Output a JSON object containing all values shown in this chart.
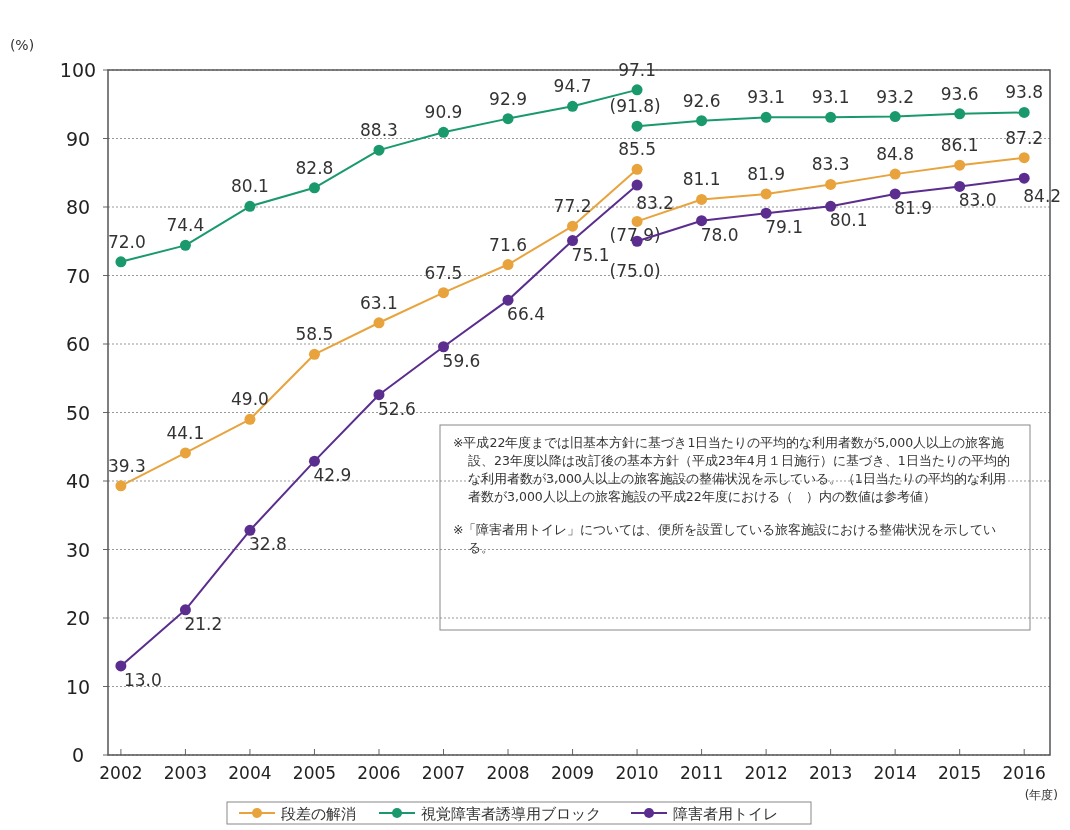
{
  "chart_data": {
    "type": "line",
    "ylabel": "(%)",
    "xlabel": "(年度)",
    "xlim": [
      2001.8,
      2016.4
    ],
    "xticks": [
      2002,
      2003,
      2004,
      2005,
      2006,
      2007,
      2008,
      2009,
      2010,
      2011,
      2012,
      2013,
      2014,
      2015,
      2016
    ],
    "ylim": [
      0,
      100
    ],
    "yticks": [
      0,
      10,
      20,
      30,
      40,
      50,
      60,
      70,
      80,
      90,
      100
    ],
    "grid": "y",
    "legend": "bottom",
    "marker": "circle",
    "line_style": "solid",
    "series": [
      {
        "name": "段差の解消",
        "color": "#e8a33d",
        "x": [
          2002,
          2003,
          2004,
          2005,
          2006,
          2007,
          2008,
          2009,
          2010
        ],
        "values": [
          39.3,
          44.1,
          49.0,
          58.5,
          63.1,
          67.5,
          71.6,
          77.2,
          85.5
        ],
        "value_labels": [
          "39.3",
          "44.1",
          "49.0",
          "58.5",
          "63.1",
          "67.5",
          "71.6",
          "77.2",
          "85.5"
        ]
      },
      {
        "name": "視覚障害者誘導用ブロック",
        "color": "#1a9a6c",
        "x": [
          2002,
          2003,
          2004,
          2005,
          2006,
          2007,
          2008,
          2009,
          2010
        ],
        "values": [
          72.0,
          74.4,
          80.1,
          82.8,
          88.3,
          90.9,
          92.9,
          94.7,
          97.1
        ],
        "value_labels": [
          "72.0",
          "74.4",
          "80.1",
          "82.8",
          "88.3",
          "90.9",
          "92.9",
          "94.7",
          "97.1"
        ]
      },
      {
        "name": "障害者用トイレ",
        "color": "#5b2d8e",
        "x": [
          2002,
          2003,
          2004,
          2005,
          2006,
          2007,
          2008,
          2009,
          2010
        ],
        "values": [
          13.0,
          21.2,
          32.8,
          42.9,
          52.6,
          59.6,
          66.4,
          75.1,
          83.2
        ],
        "value_labels": [
          "13.0",
          "21.2",
          "32.8",
          "42.9",
          "52.6",
          "59.6",
          "66.4",
          "75.1",
          "83.2"
        ]
      },
      {
        "color": "#e8a33d",
        "x": [
          2010,
          2011,
          2012,
          2013,
          2014,
          2015,
          2016
        ],
        "values": [
          77.9,
          81.1,
          81.9,
          83.3,
          84.8,
          86.1,
          87.2
        ],
        "value_labels": [
          "(77.9)",
          "81.1",
          "81.9",
          "83.3",
          "84.8",
          "86.1",
          "87.2"
        ]
      },
      {
        "color": "#1a9a6c",
        "x": [
          2010,
          2011,
          2012,
          2013,
          2014,
          2015,
          2016
        ],
        "values": [
          91.8,
          92.6,
          93.1,
          93.1,
          93.2,
          93.6,
          93.8
        ],
        "value_labels": [
          "(91.8)",
          "92.6",
          "93.1",
          "93.1",
          "93.2",
          "93.6",
          "93.8"
        ]
      },
      {
        "color": "#5b2d8e",
        "x": [
          2010,
          2011,
          2012,
          2013,
          2014,
          2015,
          2016
        ],
        "values": [
          75.0,
          78.0,
          79.1,
          80.1,
          81.9,
          83.0,
          84.2
        ],
        "value_labels": [
          "(75.0)",
          "78.0",
          "79.1",
          "80.1",
          "81.9",
          "83.0",
          "84.2"
        ]
      }
    ],
    "annotations": [
      "※平成22年度までは旧基本方針に基づき1日当たりの平均的な利用者数が5,000人以上の旅客施設、23年度以降は改訂後の基本方針（平成23年4月１日施行）に基づき、1日当たりの平均的な利用者数が3,000人以上の旅客施設の整備状況を示している。（1日当たりの平均的な利用者数が3,000人以上の旅客施設の平成22年度における（　）内の数値は参考値）",
      "※「障害者用トイレ」については、便所を設置している旅客施設における整備状況を示している。"
    ]
  }
}
